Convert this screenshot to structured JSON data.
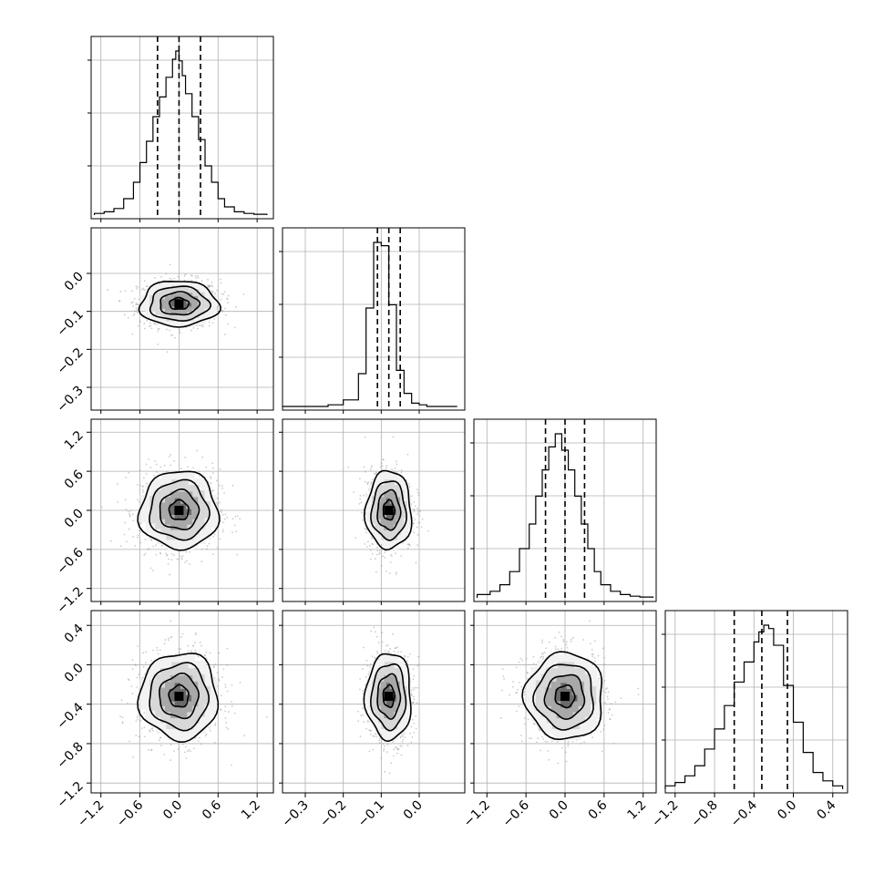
{
  "chart_data": {
    "type": "corner",
    "variables": [
      {
        "id": "p0",
        "range": [
          -1.35,
          1.45
        ],
        "ticks": [
          "−1.2",
          "−0.6",
          "0.0",
          "0.6",
          "1.2"
        ],
        "tick_values": [
          -1.2,
          -0.6,
          0.0,
          0.6,
          1.2
        ],
        "mean": 0.0,
        "sd": 0.3,
        "quantiles": [
          -0.33,
          0.0,
          0.33
        ]
      },
      {
        "id": "p1",
        "range": [
          -0.36,
          0.12
        ],
        "ticks": [
          "−0.3",
          "−0.2",
          "−0.1",
          "0.0"
        ],
        "tick_values": [
          -0.3,
          -0.2,
          -0.1,
          0.0
        ],
        "mean": -0.08,
        "sd": 0.03,
        "quantiles": [
          -0.11,
          -0.08,
          -0.05
        ]
      },
      {
        "id": "p2",
        "range": [
          -1.4,
          1.4
        ],
        "ticks": [
          "−1.2",
          "−0.6",
          "0.0",
          "0.6",
          "1.2"
        ],
        "tick_values": [
          -1.2,
          -0.6,
          0.0,
          0.6,
          1.2
        ],
        "mean": 0.0,
        "sd": 0.3,
        "quantiles": [
          -0.3,
          0.0,
          0.3
        ]
      },
      {
        "id": "p3",
        "range": [
          -1.3,
          0.55
        ],
        "ticks": [
          "−1.2",
          "−0.8",
          "−0.4",
          "0.0",
          "0.4"
        ],
        "tick_values": [
          -1.2,
          -0.8,
          -0.4,
          0.0,
          0.4
        ],
        "mean": -0.32,
        "sd": 0.22,
        "quantiles": [
          -0.6,
          -0.32,
          -0.06
        ]
      }
    ],
    "histograms": [
      {
        "var": 0,
        "bins": [
          -1.3,
          -1.15,
          -1.0,
          -0.85,
          -0.7,
          -0.6,
          -0.5,
          -0.4,
          -0.3,
          -0.2,
          -0.1,
          -0.05,
          0.0,
          0.05,
          0.1,
          0.2,
          0.3,
          0.4,
          0.5,
          0.6,
          0.7,
          0.85,
          1.0,
          1.15,
          1.35
        ],
        "counts": [
          0.01,
          0.02,
          0.04,
          0.1,
          0.2,
          0.32,
          0.45,
          0.6,
          0.72,
          0.84,
          0.95,
          1.0,
          0.94,
          0.85,
          0.74,
          0.6,
          0.46,
          0.3,
          0.2,
          0.1,
          0.05,
          0.02,
          0.01,
          0.005
        ]
      },
      {
        "var": 1,
        "bins": [
          -0.36,
          -0.32,
          -0.28,
          -0.24,
          -0.2,
          -0.16,
          -0.14,
          -0.12,
          -0.1,
          -0.08,
          -0.06,
          -0.04,
          -0.02,
          0.0,
          0.02,
          0.05,
          0.1
        ],
        "counts": [
          0.0,
          0.0,
          0.0,
          0.01,
          0.04,
          0.2,
          0.6,
          1.0,
          0.98,
          0.62,
          0.22,
          0.08,
          0.02,
          0.01,
          0.0,
          0.0
        ]
      },
      {
        "var": 2,
        "bins": [
          -1.35,
          -1.15,
          -1.0,
          -0.85,
          -0.7,
          -0.55,
          -0.45,
          -0.35,
          -0.25,
          -0.15,
          -0.05,
          0.05,
          0.15,
          0.25,
          0.35,
          0.45,
          0.55,
          0.7,
          0.85,
          1.0,
          1.15,
          1.35
        ],
        "counts": [
          0.02,
          0.04,
          0.08,
          0.16,
          0.3,
          0.45,
          0.62,
          0.78,
          0.92,
          1.0,
          0.9,
          0.78,
          0.62,
          0.45,
          0.3,
          0.16,
          0.08,
          0.04,
          0.02,
          0.01,
          0.005
        ]
      },
      {
        "var": 3,
        "bins": [
          -1.3,
          -1.2,
          -1.1,
          -1.0,
          -0.9,
          -0.8,
          -0.7,
          -0.6,
          -0.5,
          -0.4,
          -0.35,
          -0.3,
          -0.25,
          -0.2,
          -0.1,
          0.0,
          0.1,
          0.2,
          0.3,
          0.4,
          0.5
        ],
        "counts": [
          0.02,
          0.04,
          0.08,
          0.14,
          0.24,
          0.36,
          0.5,
          0.64,
          0.76,
          0.88,
          0.94,
          0.98,
          0.96,
          0.86,
          0.62,
          0.4,
          0.22,
          0.1,
          0.05,
          0.02
        ]
      }
    ],
    "pairs": [
      {
        "x": 0,
        "y": 1
      },
      {
        "x": 0,
        "y": 2
      },
      {
        "x": 1,
        "y": 2
      },
      {
        "x": 0,
        "y": 3
      },
      {
        "x": 1,
        "y": 3
      },
      {
        "x": 2,
        "y": 3
      }
    ],
    "grid": true,
    "contour_levels_sigma": [
      0.5,
      1.0,
      1.5,
      2.0
    ]
  }
}
